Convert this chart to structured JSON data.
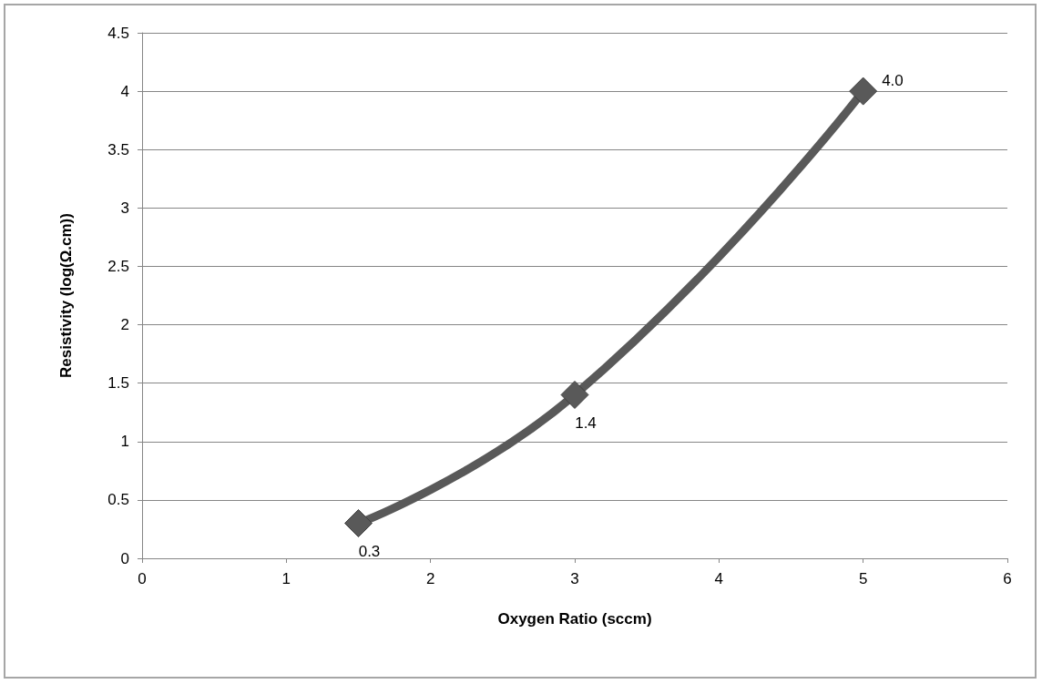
{
  "chart_data": {
    "type": "line",
    "xlabel": "Oxygen Ratio (sccm)",
    "ylabel": "Resistivity (log(Ω.cm))",
    "x": [
      1.5,
      3,
      5
    ],
    "series": [
      {
        "color": "#595959",
        "values": [
          0.3,
          1.4,
          4.0
        ],
        "value_labels": [
          "0.3",
          "1.4",
          "4.0"
        ]
      }
    ],
    "xlim": [
      0,
      6
    ],
    "xticks": [
      0,
      1,
      2,
      3,
      4,
      5,
      6
    ],
    "ylim": [
      0,
      4.5
    ],
    "yticks": [
      0,
      0.5,
      1,
      1.5,
      2,
      2.5,
      3,
      3.5,
      4,
      4.5
    ],
    "grid": "y",
    "marker": "diamond",
    "line_style": "solid"
  }
}
